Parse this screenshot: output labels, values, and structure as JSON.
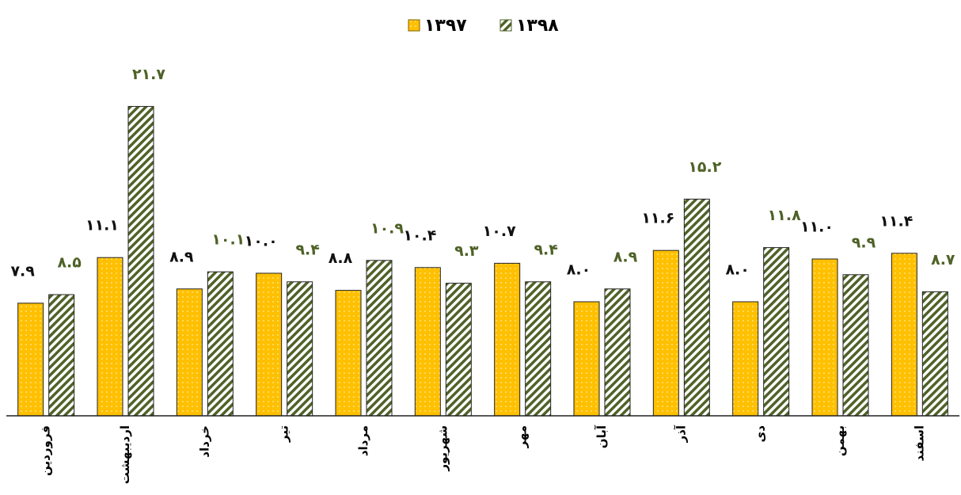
{
  "chart_data": {
    "type": "bar",
    "categories": [
      "فروردین",
      "اردیبهشت",
      "خرداد",
      "تیر",
      "مرداد",
      "شهریور",
      "مهر",
      "آبان",
      "آذر",
      "دی",
      "بهمن",
      "اسفند"
    ],
    "series": [
      {
        "name": "۱۳۹۷",
        "color": "#FFC000",
        "values": [
          7.9,
          11.1,
          8.9,
          10.0,
          8.8,
          10.4,
          10.7,
          8.0,
          11.6,
          8.0,
          11.0,
          11.4
        ],
        "value_labels": [
          "۷.۹",
          "۱۱.۱",
          "۸.۹",
          "۱۰.۰",
          "۸.۸",
          "۱۰.۴",
          "۱۰.۷",
          "۸.۰",
          "۱۱.۶",
          "۸.۰",
          "۱۱.۰",
          "۱۱.۴"
        ]
      },
      {
        "name": "۱۳۹۸",
        "color": "#4F6228",
        "values": [
          8.5,
          21.7,
          10.1,
          9.4,
          10.9,
          9.3,
          9.4,
          8.9,
          15.2,
          11.8,
          9.9,
          8.7
        ],
        "value_labels": [
          "۸.۵",
          "۲۱.۷",
          "۱۰.۱",
          "۹.۴",
          "۱۰.۹",
          "۹.۳",
          "۹.۴",
          "۸.۹",
          "۱۵.۲",
          "۱۱.۸",
          "۹.۹",
          "۸.۷"
        ]
      }
    ],
    "ylim": [
      0,
      25
    ],
    "legend": "top"
  }
}
